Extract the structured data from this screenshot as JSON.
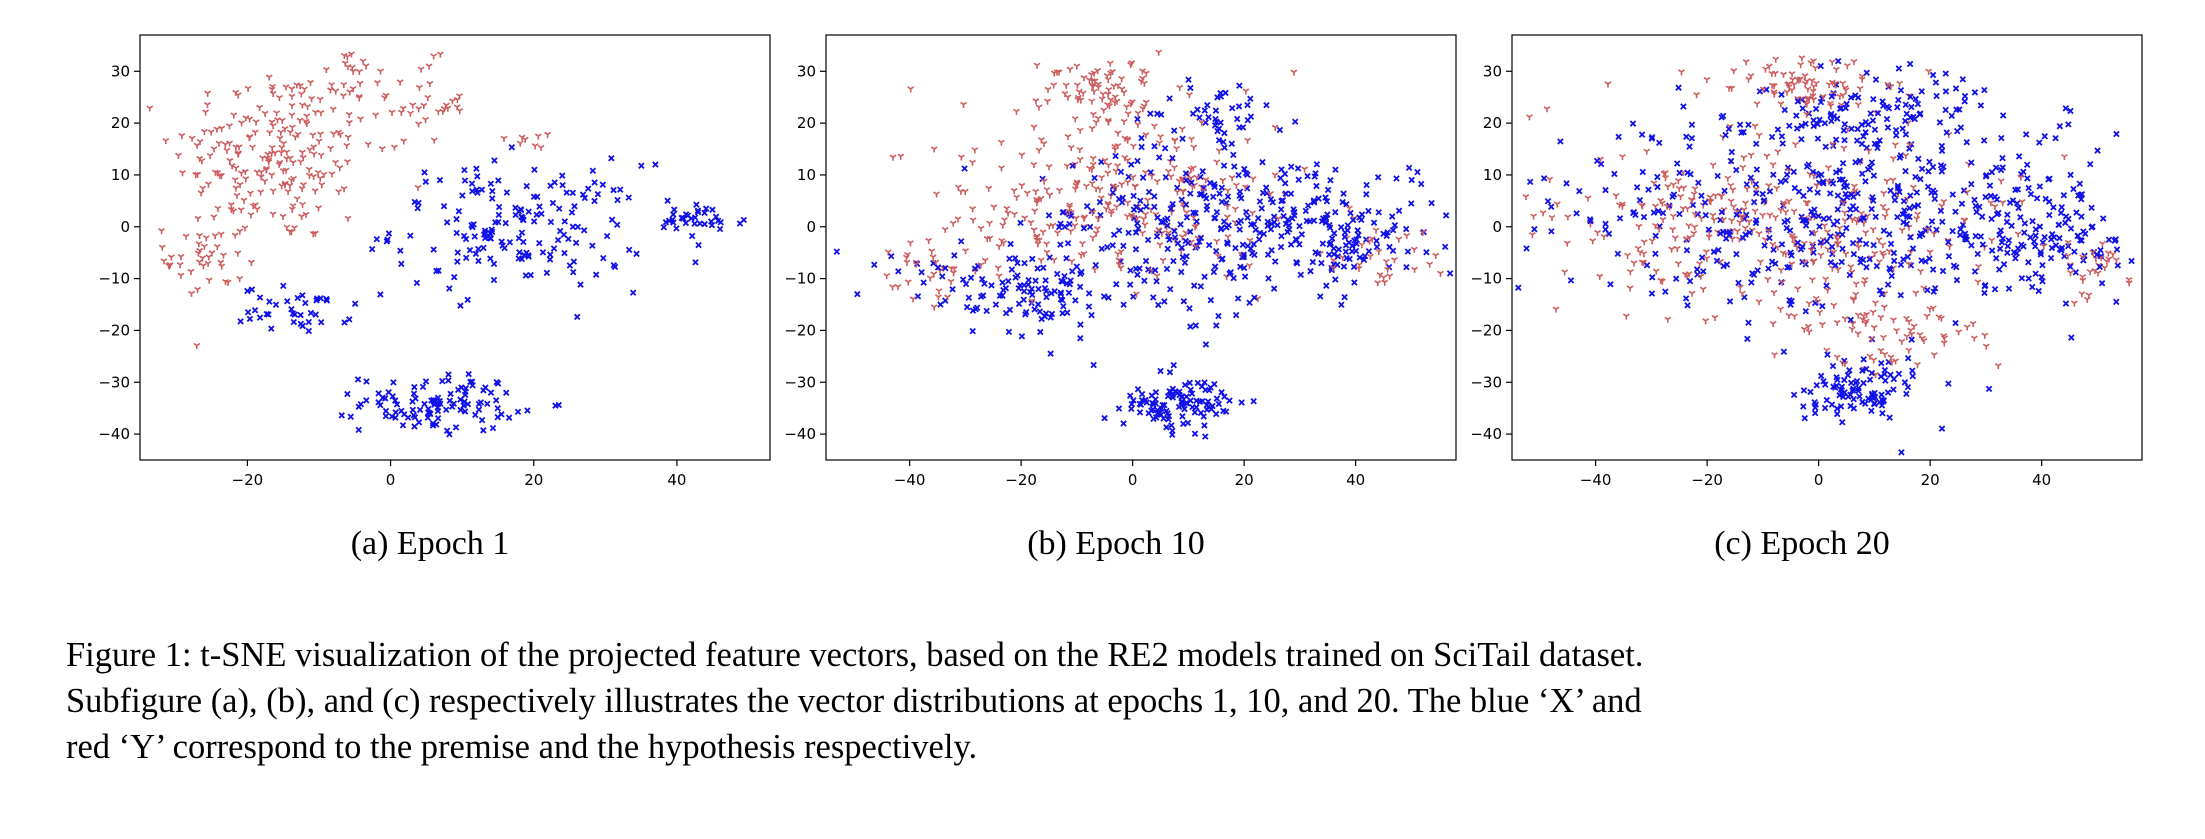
{
  "colors": {
    "premise": "#1010e8",
    "hypothesis": "#cd5c5c"
  },
  "markers": {
    "premise": "x",
    "hypothesis": "tri_down"
  },
  "chart_data": [
    {
      "type": "scatter",
      "subcaption": "(a) Epoch 1",
      "xlim": [
        -35,
        53
      ],
      "ylim": [
        -45,
        37
      ],
      "xticks": [
        -20,
        0,
        20,
        40
      ],
      "yticks": [
        -40,
        -30,
        -20,
        -10,
        0,
        10,
        20,
        30
      ],
      "grid": false,
      "series": [
        {
          "role": "hypothesis",
          "clusters": [
            {
              "cx": -16,
              "cy": 14,
              "rx": 13,
              "ry": 16,
              "n": 210
            },
            {
              "cx": 4,
              "cy": 24,
              "rx": 6,
              "ry": 7,
              "n": 35
            },
            {
              "cx": -26,
              "cy": -6,
              "rx": 5,
              "ry": 8,
              "n": 40
            },
            {
              "cx": 20,
              "cy": 17,
              "rx": 3,
              "ry": 3,
              "n": 8
            },
            {
              "cx": -6,
              "cy": 30,
              "rx": 4,
              "ry": 3,
              "n": 15
            }
          ]
        },
        {
          "role": "premise",
          "clusters": [
            {
              "cx": 18,
              "cy": 0,
              "rx": 16,
              "ry": 11,
              "n": 170
            },
            {
              "cx": 43,
              "cy": 1,
              "rx": 6,
              "ry": 3,
              "n": 35
            },
            {
              "cx": -13,
              "cy": -16,
              "rx": 7,
              "ry": 4,
              "n": 40
            },
            {
              "cx": 7,
              "cy": -34,
              "rx": 10,
              "ry": 5,
              "n": 110
            }
          ]
        }
      ]
    },
    {
      "type": "scatter",
      "subcaption": "(b) Epoch 10",
      "xlim": [
        -55,
        58
      ],
      "ylim": [
        -45,
        37
      ],
      "xticks": [
        -40,
        -20,
        0,
        20,
        40
      ],
      "yticks": [
        -40,
        -30,
        -20,
        -10,
        0,
        10,
        20,
        30
      ],
      "grid": false,
      "series": [
        {
          "role": "hypothesis",
          "clusters": [
            {
              "cx": -5,
              "cy": 5,
              "rx": 30,
              "ry": 15,
              "n": 260
            },
            {
              "cx": -5,
              "cy": 26,
              "rx": 12,
              "ry": 6,
              "n": 80
            },
            {
              "cx": 45,
              "cy": -6,
              "rx": 8,
              "ry": 5,
              "n": 30
            },
            {
              "cx": -35,
              "cy": -8,
              "rx": 10,
              "ry": 6,
              "n": 30
            }
          ]
        },
        {
          "role": "premise",
          "clusters": [
            {
              "cx": 15,
              "cy": 0,
              "rx": 30,
              "ry": 15,
              "n": 320
            },
            {
              "cx": -20,
              "cy": -12,
              "rx": 20,
              "ry": 7,
              "n": 120
            },
            {
              "cx": 40,
              "cy": -2,
              "rx": 10,
              "ry": 8,
              "n": 70
            },
            {
              "cx": 8,
              "cy": -34,
              "rx": 10,
              "ry": 5,
              "n": 110
            },
            {
              "cx": 15,
              "cy": 22,
              "rx": 10,
              "ry": 5,
              "n": 40
            }
          ]
        }
      ]
    },
    {
      "type": "scatter",
      "subcaption": "(c) Epoch 20",
      "xlim": [
        -55,
        58
      ],
      "ylim": [
        -45,
        37
      ],
      "xticks": [
        -40,
        -20,
        0,
        20,
        40
      ],
      "yticks": [
        -40,
        -30,
        -20,
        -10,
        0,
        10,
        20,
        30
      ],
      "grid": false,
      "series": [
        {
          "role": "hypothesis",
          "clusters": [
            {
              "cx": -8,
              "cy": 0,
              "rx": 38,
              "ry": 18,
              "n": 330
            },
            {
              "cx": -2,
              "cy": 27,
              "rx": 12,
              "ry": 5,
              "n": 80
            },
            {
              "cx": 48,
              "cy": -8,
              "rx": 5,
              "ry": 5,
              "n": 25
            },
            {
              "cx": 15,
              "cy": -20,
              "rx": 15,
              "ry": 6,
              "n": 60
            }
          ]
        },
        {
          "role": "premise",
          "clusters": [
            {
              "cx": 5,
              "cy": 2,
              "rx": 45,
              "ry": 17,
              "n": 480
            },
            {
              "cx": 10,
              "cy": 22,
              "rx": 20,
              "ry": 7,
              "n": 100
            },
            {
              "cx": 8,
              "cy": -32,
              "rx": 10,
              "ry": 6,
              "n": 100
            },
            {
              "cx": 42,
              "cy": -2,
              "rx": 10,
              "ry": 10,
              "n": 80
            }
          ]
        }
      ]
    }
  ],
  "caption": [
    "Figure 1: t-SNE visualization of the projected feature vectors, based on the RE2 models trained on SciTail dataset.",
    "Subfigure (a), (b), and (c) respectively illustrates the vector distributions at epochs 1, 10, and 20. The blue ‘X’ and",
    "red ‘Y’ correspond to the premise and the hypothesis respectively."
  ]
}
